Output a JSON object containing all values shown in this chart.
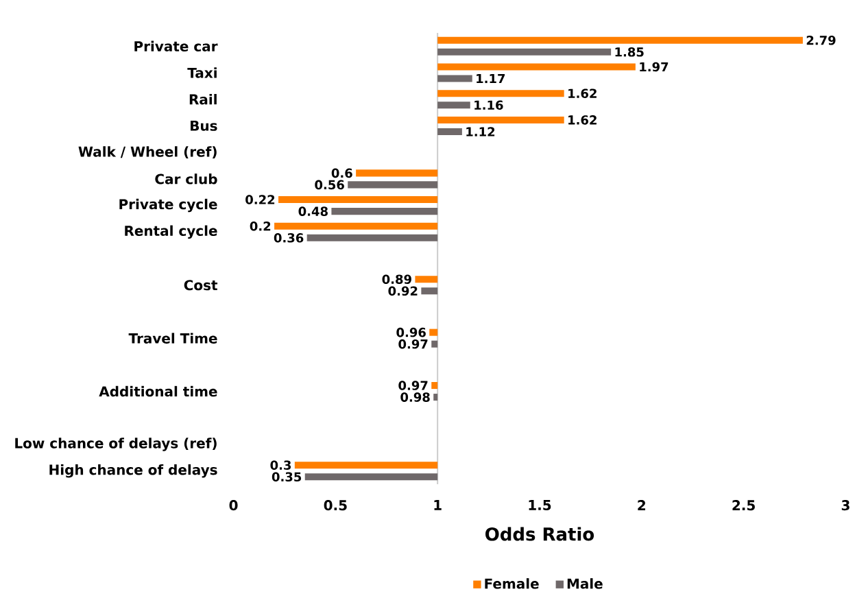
{
  "chart_data": {
    "type": "bar",
    "orientation": "horizontal",
    "xlabel": "Odds Ratio",
    "categories": [
      "Private car",
      "Taxi",
      "Rail",
      "Bus",
      "Walk / Wheel (ref)",
      "Car club",
      "Private cycle",
      "Rental cycle",
      null,
      "Cost",
      null,
      "Travel Time",
      null,
      "Additional time",
      null,
      "Low chance of delays (ref)",
      "High chance of delays"
    ],
    "series": [
      {
        "name": "Female",
        "color": "#ff7f00",
        "base": [
          1,
          1,
          1,
          1,
          null,
          1,
          1,
          1,
          null,
          1,
          null,
          1,
          null,
          1,
          null,
          null,
          1
        ],
        "values": [
          1.79,
          0.97,
          0.62,
          0.62,
          null,
          -0.4,
          -0.78,
          -0.8,
          null,
          -0.11,
          null,
          -0.04,
          null,
          -0.03,
          null,
          null,
          -0.7
        ],
        "value_labels": [
          "2.79",
          "1.97",
          "1.62",
          "1.62",
          null,
          "0.6",
          "0.22",
          "0.2",
          null,
          "0.89",
          null,
          "0.96",
          null,
          "0.97",
          null,
          null,
          "0.3"
        ]
      },
      {
        "name": "Male",
        "color": "#6f6869",
        "base": [
          1,
          1,
          1,
          1,
          null,
          1,
          1,
          1,
          null,
          1,
          null,
          1,
          null,
          1,
          null,
          null,
          1
        ],
        "values": [
          0.85,
          0.17,
          0.16,
          0.12,
          null,
          -0.44,
          -0.52,
          -0.64,
          null,
          -0.08,
          null,
          -0.03,
          null,
          -0.02,
          null,
          null,
          -0.65
        ],
        "value_labels": [
          "1.85",
          "1.17",
          "1.16",
          "1.12",
          null,
          "0.56",
          "0.48",
          "0.36",
          null,
          "0.92",
          null,
          "0.97",
          null,
          "0.98",
          null,
          null,
          "0.35"
        ]
      }
    ],
    "xlim": [
      0,
      3
    ],
    "xticks": [
      0,
      0.5,
      1,
      1.5,
      2,
      2.5,
      3
    ],
    "legend": "bottom"
  }
}
